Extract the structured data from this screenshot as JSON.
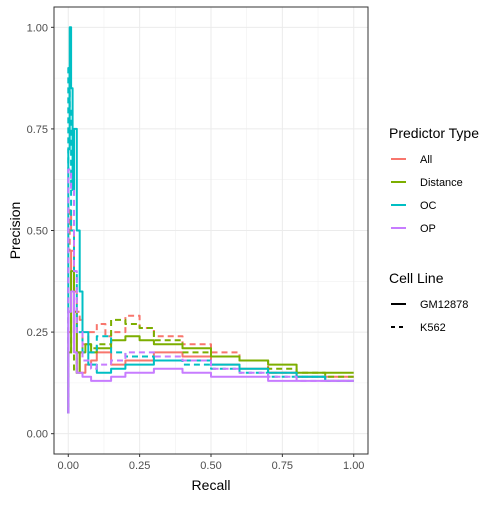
{
  "chart_data": {
    "type": "line",
    "xlabel": "Recall",
    "ylabel": "Precision",
    "xlim": [
      -0.05,
      1.05
    ],
    "ylim": [
      -0.05,
      1.05
    ],
    "x_ticks": [
      0.0,
      0.25,
      0.5,
      0.75,
      1.0
    ],
    "x_tick_labels": [
      "0.00",
      "0.25",
      "0.50",
      "0.75",
      "1.00"
    ],
    "y_ticks": [
      0.0,
      0.25,
      0.5,
      0.75,
      1.0
    ],
    "y_tick_labels": [
      "0.00",
      "0.25",
      "0.50",
      "0.75",
      "1.00"
    ],
    "grid": true,
    "legend_placement": "right",
    "legends": [
      {
        "title": "Predictor Type",
        "entries": [
          {
            "label": "All",
            "color": "#F8766D"
          },
          {
            "label": "Distance",
            "color": "#7CAE00"
          },
          {
            "label": "OC",
            "color": "#00BFC4"
          },
          {
            "label": "OP",
            "color": "#C77CFF"
          }
        ]
      },
      {
        "title": "Cell Line",
        "entries": [
          {
            "label": "GM12878",
            "linetype": "solid"
          },
          {
            "label": "K562",
            "linetype": "dashed"
          }
        ]
      }
    ],
    "series": [
      {
        "predictor": "All",
        "cell_line": "GM12878",
        "color": "#F8766D",
        "dash": "solid",
        "x": [
          0.0,
          0.01,
          0.02,
          0.03,
          0.04,
          0.06,
          0.08,
          0.1,
          0.15,
          0.2,
          0.3,
          0.4,
          0.5,
          0.6,
          0.7,
          0.8,
          0.9,
          1.0
        ],
        "y": [
          0.05,
          0.25,
          0.45,
          0.3,
          0.2,
          0.15,
          0.17,
          0.18,
          0.2,
          0.17,
          0.18,
          0.2,
          0.19,
          0.17,
          0.16,
          0.15,
          0.14,
          0.14
        ]
      },
      {
        "predictor": "All",
        "cell_line": "K562",
        "color": "#F8766D",
        "dash": "dashed",
        "x": [
          0.0,
          0.005,
          0.01,
          0.02,
          0.03,
          0.04,
          0.05,
          0.07,
          0.1,
          0.13,
          0.15,
          0.2,
          0.25,
          0.3,
          0.4,
          0.5,
          0.6,
          0.7,
          0.8,
          0.9,
          1.0
        ],
        "y": [
          0.05,
          0.45,
          0.55,
          0.5,
          0.35,
          0.3,
          0.28,
          0.22,
          0.25,
          0.27,
          0.24,
          0.25,
          0.29,
          0.26,
          0.24,
          0.22,
          0.2,
          0.18,
          0.15,
          0.14,
          0.13
        ]
      },
      {
        "predictor": "Distance",
        "cell_line": "GM12878",
        "color": "#7CAE00",
        "dash": "solid",
        "x": [
          0.0,
          0.01,
          0.02,
          0.03,
          0.04,
          0.06,
          0.08,
          0.1,
          0.15,
          0.2,
          0.25,
          0.3,
          0.4,
          0.5,
          0.6,
          0.7,
          0.8,
          0.9,
          1.0
        ],
        "y": [
          0.05,
          0.2,
          0.4,
          0.3,
          0.15,
          0.2,
          0.22,
          0.2,
          0.21,
          0.23,
          0.24,
          0.23,
          0.22,
          0.21,
          0.19,
          0.18,
          0.17,
          0.15,
          0.15
        ]
      },
      {
        "predictor": "Distance",
        "cell_line": "K562",
        "color": "#7CAE00",
        "dash": "dashed",
        "x": [
          0.0,
          0.01,
          0.02,
          0.03,
          0.05,
          0.08,
          0.1,
          0.15,
          0.2,
          0.25,
          0.3,
          0.4,
          0.5,
          0.6,
          0.7,
          0.8,
          0.9,
          1.0
        ],
        "y": [
          0.05,
          0.3,
          0.2,
          0.15,
          0.2,
          0.22,
          0.21,
          0.22,
          0.28,
          0.27,
          0.26,
          0.23,
          0.2,
          0.19,
          0.18,
          0.16,
          0.15,
          0.14
        ]
      },
      {
        "predictor": "OC",
        "cell_line": "GM12878",
        "color": "#00BFC4",
        "dash": "solid",
        "x": [
          0.0,
          0.005,
          0.01,
          0.015,
          0.02,
          0.03,
          0.04,
          0.05,
          0.07,
          0.1,
          0.15,
          0.2,
          0.3,
          0.4,
          0.5,
          0.6,
          0.7,
          0.8,
          0.9,
          1.0
        ],
        "y": [
          0.05,
          0.7,
          1.0,
          0.85,
          0.6,
          0.75,
          0.5,
          0.35,
          0.25,
          0.17,
          0.15,
          0.16,
          0.17,
          0.18,
          0.18,
          0.17,
          0.16,
          0.15,
          0.14,
          0.13
        ]
      },
      {
        "predictor": "OC",
        "cell_line": "K562",
        "color": "#00BFC4",
        "dash": "dashed",
        "x": [
          0.0,
          0.005,
          0.01,
          0.02,
          0.03,
          0.05,
          0.1,
          0.15,
          0.2,
          0.3,
          0.4,
          0.5,
          0.6,
          0.7,
          0.8,
          0.9,
          1.0
        ],
        "y": [
          0.05,
          0.9,
          0.8,
          0.5,
          0.4,
          0.25,
          0.2,
          0.24,
          0.2,
          0.19,
          0.18,
          0.17,
          0.16,
          0.15,
          0.14,
          0.14,
          0.13
        ]
      },
      {
        "predictor": "OP",
        "cell_line": "GM12878",
        "color": "#C77CFF",
        "dash": "solid",
        "x": [
          0.0,
          0.01,
          0.02,
          0.03,
          0.05,
          0.08,
          0.1,
          0.15,
          0.2,
          0.3,
          0.4,
          0.5,
          0.6,
          0.7,
          0.75,
          0.8,
          0.9,
          1.0
        ],
        "y": [
          0.05,
          0.3,
          0.35,
          0.2,
          0.15,
          0.14,
          0.13,
          0.13,
          0.14,
          0.15,
          0.16,
          0.15,
          0.14,
          0.14,
          0.13,
          0.13,
          0.13,
          0.13
        ]
      },
      {
        "predictor": "OP",
        "cell_line": "K562",
        "color": "#C77CFF",
        "dash": "dashed",
        "x": [
          0.0,
          0.01,
          0.02,
          0.03,
          0.05,
          0.08,
          0.1,
          0.15,
          0.2,
          0.3,
          0.4,
          0.5,
          0.6,
          0.7,
          0.8,
          0.9,
          1.0
        ],
        "y": [
          0.05,
          0.65,
          0.6,
          0.4,
          0.25,
          0.18,
          0.16,
          0.17,
          0.18,
          0.2,
          0.19,
          0.18,
          0.16,
          0.15,
          0.14,
          0.13,
          0.13
        ]
      }
    ]
  }
}
